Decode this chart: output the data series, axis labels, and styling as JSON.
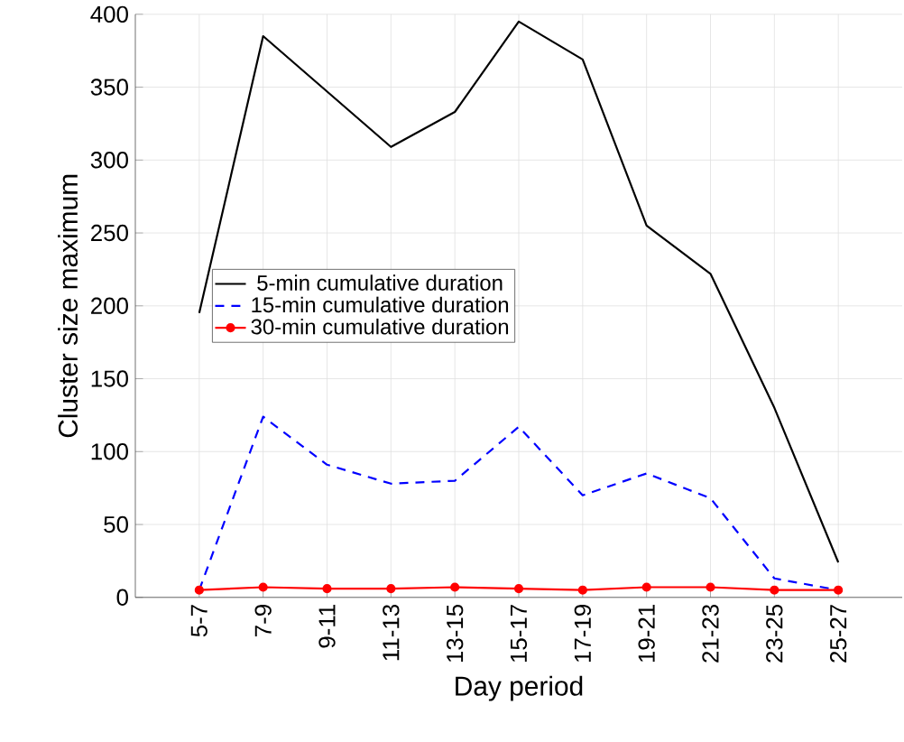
{
  "chart_data": {
    "type": "line",
    "xlabel": "Day period",
    "ylabel": "Cluster size maximum",
    "categories": [
      "5-7",
      "7-9",
      "9-11",
      "11-13",
      "13-15",
      "15-17",
      "17-19",
      "19-21",
      "21-23",
      "23-25",
      "25-27"
    ],
    "series": [
      {
        "name": "5-min cumulative duration",
        "color": "#000000",
        "line_style": "solid",
        "marker": "none",
        "values": [
          195,
          385,
          347,
          309,
          333,
          395,
          369,
          255,
          222,
          130,
          24
        ]
      },
      {
        "name": "15-min cumulative duration",
        "color": "#0000ff",
        "line_style": "dashed",
        "marker": "none",
        "values": [
          5,
          124,
          91,
          78,
          80,
          117,
          70,
          85,
          68,
          13,
          5
        ]
      },
      {
        "name": "30-min cumulative duration",
        "color": "#ff0000",
        "line_style": "solid",
        "marker": "circle",
        "values": [
          5,
          7,
          6,
          6,
          7,
          6,
          5,
          7,
          7,
          5,
          5
        ]
      }
    ],
    "ylim": [
      0,
      400
    ],
    "yticks": [
      0,
      50,
      100,
      150,
      200,
      250,
      300,
      350,
      400
    ],
    "grid": true,
    "legend": "left"
  }
}
